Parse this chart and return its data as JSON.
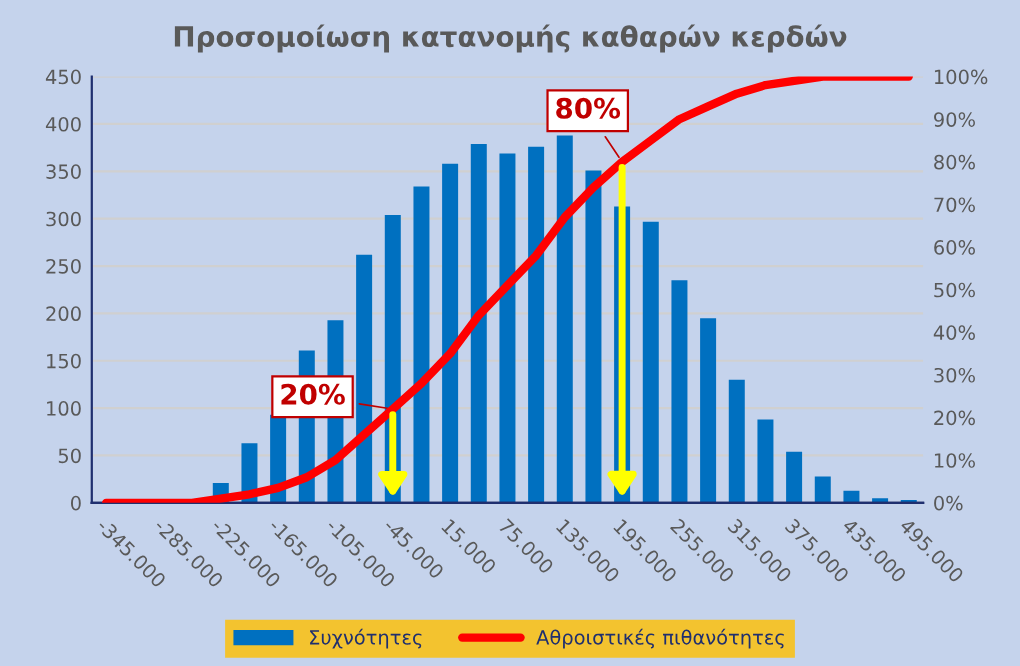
{
  "chart_data": {
    "type": "bar",
    "title": "Προσομοίωση κατανομής καθαρών κερδών",
    "categories": [
      "-345.000",
      null,
      "-285.000",
      null,
      "-225.000",
      null,
      "-165.000",
      null,
      "-105.000",
      null,
      "-45.000",
      null,
      "15.000",
      null,
      "75.000",
      null,
      "135.000",
      null,
      "195.000",
      null,
      "255.000",
      null,
      "315.000",
      null,
      "375.000",
      null,
      "435.000",
      null,
      "495.000"
    ],
    "series": [
      {
        "name": "Συχνότητες",
        "color": "#0070c0",
        "values": [
          0,
          0,
          0,
          3,
          20,
          62,
          92,
          160,
          192,
          261,
          303,
          333,
          357,
          378,
          368,
          375,
          387,
          350,
          312,
          296,
          234,
          194,
          129,
          87,
          53,
          27,
          12,
          4,
          2
        ]
      },
      {
        "name": "Αθροιστικές πιθανότητες",
        "type": "line",
        "axis": "y2",
        "color": "#ff0000",
        "values": [
          0,
          0,
          0,
          0,
          1,
          2,
          3.5,
          6,
          10,
          16,
          22,
          28,
          35,
          44,
          51,
          58,
          67,
          74,
          80,
          85,
          90,
          93,
          96,
          98,
          99,
          100,
          100,
          100,
          100
        ]
      }
    ],
    "ylim": [
      0,
      450
    ],
    "yticks": [
      0,
      50,
      100,
      150,
      200,
      250,
      300,
      350,
      400,
      450
    ],
    "y2lim": [
      0,
      100
    ],
    "y2ticks": [
      {
        "value": 0,
        "label": "0%"
      },
      {
        "value": 10,
        "label": "10%"
      },
      {
        "value": 20,
        "label": "20%"
      },
      {
        "value": 30,
        "label": "30%"
      },
      {
        "value": 40,
        "label": "40%"
      },
      {
        "value": 50,
        "label": "50%"
      },
      {
        "value": 60,
        "label": "60%"
      },
      {
        "value": 70,
        "label": "70%"
      },
      {
        "value": 80,
        "label": "80%"
      },
      {
        "value": 90,
        "label": "90%"
      },
      {
        "value": 100,
        "label": "100%"
      }
    ],
    "annotations": [
      {
        "text": "20%",
        "x": "-45.000",
        "y": 99
      },
      {
        "text": "80%",
        "x": "195.000",
        "y": 360
      }
    ],
    "grid": "y",
    "legend": "bottom",
    "marker": "none",
    "line_style": "solid"
  }
}
